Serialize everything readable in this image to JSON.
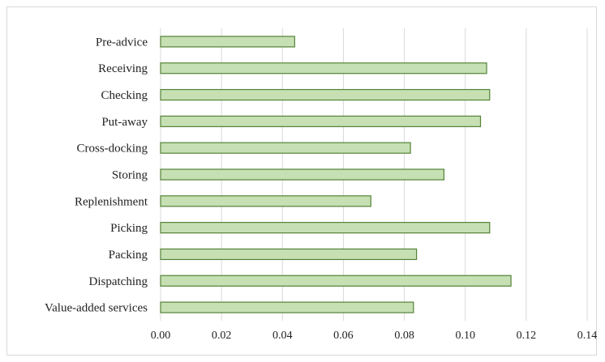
{
  "chart_data": {
    "type": "bar",
    "orientation": "horizontal",
    "title": "",
    "xlabel": "",
    "ylabel": "",
    "categories": [
      "Pre-advice",
      "Receiving",
      "Checking",
      "Put-away",
      "Cross-docking",
      "Storing",
      "Replenishment",
      "Picking",
      "Packing",
      "Dispatching",
      "Value-added services"
    ],
    "values": [
      0.044,
      0.107,
      0.108,
      0.105,
      0.082,
      0.093,
      0.069,
      0.108,
      0.084,
      0.115,
      0.083
    ],
    "xlim": [
      0,
      0.14
    ],
    "xticks": [
      0,
      0.02,
      0.04,
      0.06,
      0.08,
      0.1,
      0.12,
      0.14
    ],
    "xtick_labels": [
      "0.00",
      "0.02",
      "0.04",
      "0.06",
      "0.08",
      "0.10",
      "0.12",
      "0.14"
    ],
    "grid": true,
    "legend": "none",
    "bar_fill": "#c6e0b4",
    "bar_stroke": "#548235",
    "grid_color": "#d9d9d9"
  }
}
